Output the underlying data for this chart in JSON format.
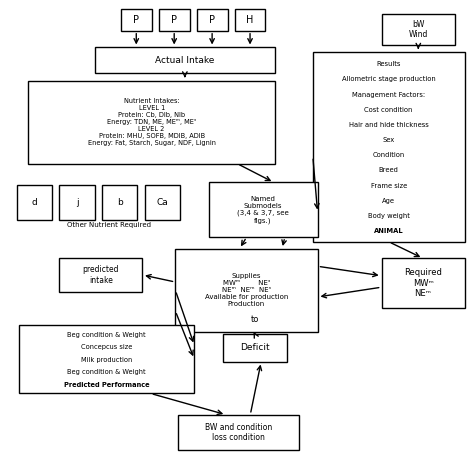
{
  "bg_color": "#ffffff",
  "boxes": {
    "bw_cond": {
      "text": "BW and condition\nloss condition",
      "fs": 5.5
    },
    "deficit": {
      "text": "Deficit",
      "fs": 6.5
    },
    "to_text": "to",
    "predicted_perf": {
      "text": "Predicted Performance\nBeg condition & Weight\nMilk production\nConcepcus size\nBeg condition & Weight",
      "fs": 5.0
    },
    "predicted_intake": {
      "text": "predicted\nintake",
      "fs": 5.5
    },
    "supplies": {
      "text": "Supplies\nMWᵐ        NEᶟ\nNEᵐ  NEᵐ  NEᶟ\nAvailable for production\nProduction",
      "fs": 5.2
    },
    "required": {
      "text": "Required\nMWᵐ\nNEᵐ",
      "fs": 6.0
    },
    "named_sub": {
      "text": "Named\nSubmodels\n(3,4 & 3,7, see\nfigs.)",
      "fs": 5.0
    },
    "other_nutrient_label": "Other Nutrient Required",
    "nutrient_intakes": {
      "text": "Nutrient Intakes:\nLEVEL 1\nProtein: Cb, DIb, Nlb\nEnergy: TDN, ME, MEᵐ, MEᶟ\nLEVEL 2\nProtein: MHU, SOFB, MDIB, ADIB\nEnergy: Fat, Starch, Sugar, NDF, Lignin",
      "fs": 4.8
    },
    "actual_intake": {
      "text": "Actual Intake",
      "fs": 6.5
    },
    "animal": {
      "text": "ANIMAL\nBody weight\nAge\nFrame size\nBreed\nCondition\nSex\nHair and hide thickness\nCost condition\nManagement Factors:\nAllometric stage production\nResults",
      "fs": 5.0
    },
    "wind": {
      "text": "bW\nWind",
      "fs": 5.5
    }
  },
  "small_labels_onr": [
    "Ca",
    "b",
    "j",
    "d"
  ],
  "small_labels_bottom": [
    "H",
    "P",
    "P",
    "P"
  ]
}
